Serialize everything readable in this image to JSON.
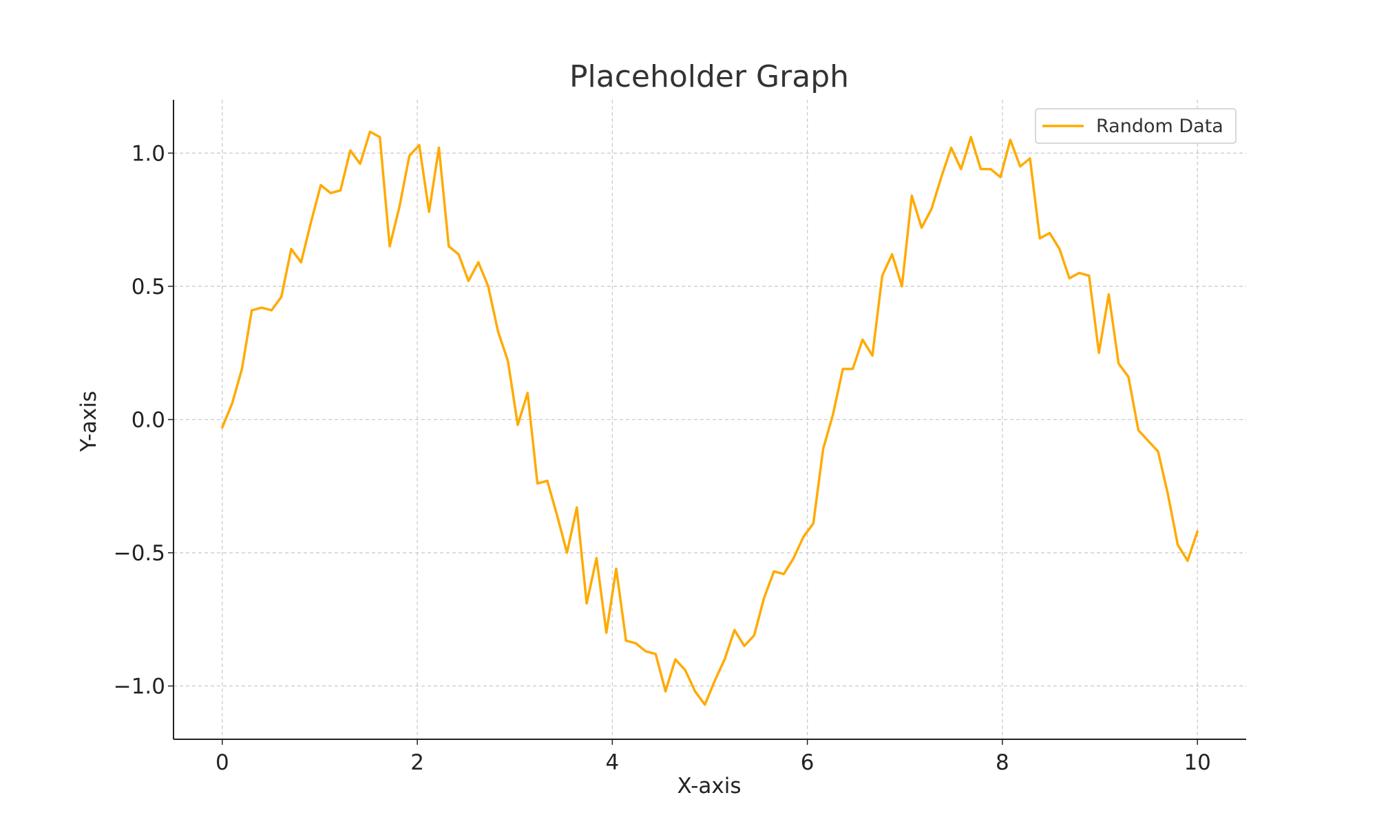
{
  "chart_data": {
    "type": "line",
    "title": "Placeholder Graph",
    "xlabel": "X-axis",
    "ylabel": "Y-axis",
    "xlim": [
      -0.5,
      10.5
    ],
    "ylim": [
      -1.2,
      1.2
    ],
    "x_ticks": [
      0,
      2,
      4,
      6,
      8,
      10
    ],
    "x_tick_labels": [
      "0",
      "2",
      "4",
      "6",
      "8",
      "10"
    ],
    "y_ticks": [
      1.0,
      0.5,
      0.0,
      -0.5,
      -1.0
    ],
    "y_tick_labels": [
      "1.0",
      "0.5",
      "0.0",
      "−0.5",
      "−1.0"
    ],
    "grid": true,
    "legend_position": "top-right",
    "series": [
      {
        "name": "Random Data",
        "color": "#FFAA00",
        "x": [
          0,
          0.101,
          0.202,
          0.303,
          0.404,
          0.505,
          0.606,
          0.707,
          0.808,
          0.909,
          1.01,
          1.111,
          1.212,
          1.313,
          1.414,
          1.515,
          1.616,
          1.717,
          1.818,
          1.919,
          2.02,
          2.121,
          2.222,
          2.323,
          2.424,
          2.525,
          2.626,
          2.727,
          2.828,
          2.929,
          3.03,
          3.131,
          3.232,
          3.333,
          3.434,
          3.535,
          3.636,
          3.737,
          3.838,
          3.939,
          4.04,
          4.141,
          4.242,
          4.343,
          4.444,
          4.545,
          4.646,
          4.747,
          4.848,
          4.949,
          5.051,
          5.152,
          5.253,
          5.354,
          5.455,
          5.556,
          5.657,
          5.758,
          5.859,
          5.96,
          6.061,
          6.162,
          6.263,
          6.364,
          6.465,
          6.566,
          6.667,
          6.768,
          6.869,
          6.97,
          7.071,
          7.172,
          7.273,
          7.374,
          7.475,
          7.576,
          7.677,
          7.778,
          7.879,
          7.98,
          8.081,
          8.182,
          8.283,
          8.384,
          8.485,
          8.586,
          8.687,
          8.788,
          8.889,
          8.99,
          9.091,
          9.192,
          9.293,
          9.394,
          9.495,
          9.596,
          9.697,
          9.798,
          9.899,
          10.0
        ],
        "y": [
          -0.03,
          0.06,
          0.19,
          0.41,
          0.42,
          0.41,
          0.46,
          0.64,
          0.59,
          0.74,
          0.88,
          0.85,
          0.86,
          1.01,
          0.96,
          1.08,
          1.06,
          0.65,
          0.8,
          0.99,
          1.03,
          0.78,
          1.02,
          0.65,
          0.62,
          0.52,
          0.59,
          0.5,
          0.33,
          0.22,
          -0.02,
          0.1,
          -0.24,
          -0.23,
          -0.36,
          -0.5,
          -0.33,
          -0.69,
          -0.52,
          -0.8,
          -0.56,
          -0.83,
          -0.84,
          -0.87,
          -0.88,
          -1.02,
          -0.9,
          -0.94,
          -1.02,
          -1.07,
          -0.98,
          -0.9,
          -0.79,
          -0.85,
          -0.81,
          -0.67,
          -0.57,
          -0.58,
          -0.52,
          -0.44,
          -0.39,
          -0.11,
          0.02,
          0.19,
          0.19,
          0.3,
          0.24,
          0.54,
          0.62,
          0.5,
          0.84,
          0.72,
          0.79,
          0.91,
          1.02,
          0.94,
          1.06,
          0.94,
          0.94,
          0.91,
          1.05,
          0.95,
          0.98,
          0.68,
          0.7,
          0.64,
          0.53,
          0.55,
          0.54,
          0.25,
          0.47,
          0.21,
          0.16,
          -0.04,
          -0.08,
          -0.12,
          -0.28,
          -0.47,
          -0.53,
          -0.42
        ]
      }
    ]
  }
}
